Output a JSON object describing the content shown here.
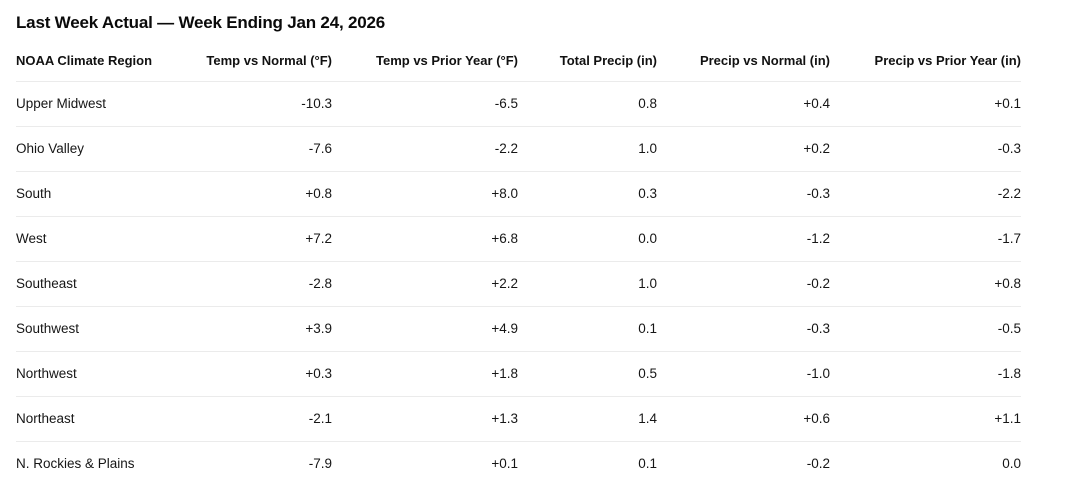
{
  "header": {
    "title": "Last Week Actual — Week Ending Jan 24, 2026"
  },
  "chart_data": {
    "type": "table",
    "title": "Last Week Actual — Week Ending Jan 24, 2026",
    "columns": [
      "NOAA Climate Region",
      "Temp vs Normal (°F)",
      "Temp vs Prior Year (°F)",
      "Total Precip (in)",
      "Precip vs Normal (in)",
      "Precip vs Prior Year (in)"
    ],
    "rows": [
      [
        "Upper Midwest",
        "-10.3",
        "-6.5",
        "0.8",
        "+0.4",
        "+0.1"
      ],
      [
        "Ohio Valley",
        "-7.6",
        "-2.2",
        "1.0",
        "+0.2",
        "-0.3"
      ],
      [
        "South",
        "+0.8",
        "+8.0",
        "0.3",
        "-0.3",
        "-2.2"
      ],
      [
        "West",
        "+7.2",
        "+6.8",
        "0.0",
        "-1.2",
        "-1.7"
      ],
      [
        "Southeast",
        "-2.8",
        "+2.2",
        "1.0",
        "-0.2",
        "+0.8"
      ],
      [
        "Southwest",
        "+3.9",
        "+4.9",
        "0.1",
        "-0.3",
        "-0.5"
      ],
      [
        "Northwest",
        "+0.3",
        "+1.8",
        "0.5",
        "-1.0",
        "-1.8"
      ],
      [
        "Northeast",
        "-2.1",
        "+1.3",
        "1.4",
        "+0.6",
        "+1.1"
      ],
      [
        "N. Rockies & Plains",
        "-7.9",
        "+0.1",
        "0.1",
        "-0.2",
        "0.0"
      ]
    ],
    "layout": {
      "text_color": "#111111",
      "divider_color": "#ebebeb",
      "background": "#ffffff"
    }
  }
}
